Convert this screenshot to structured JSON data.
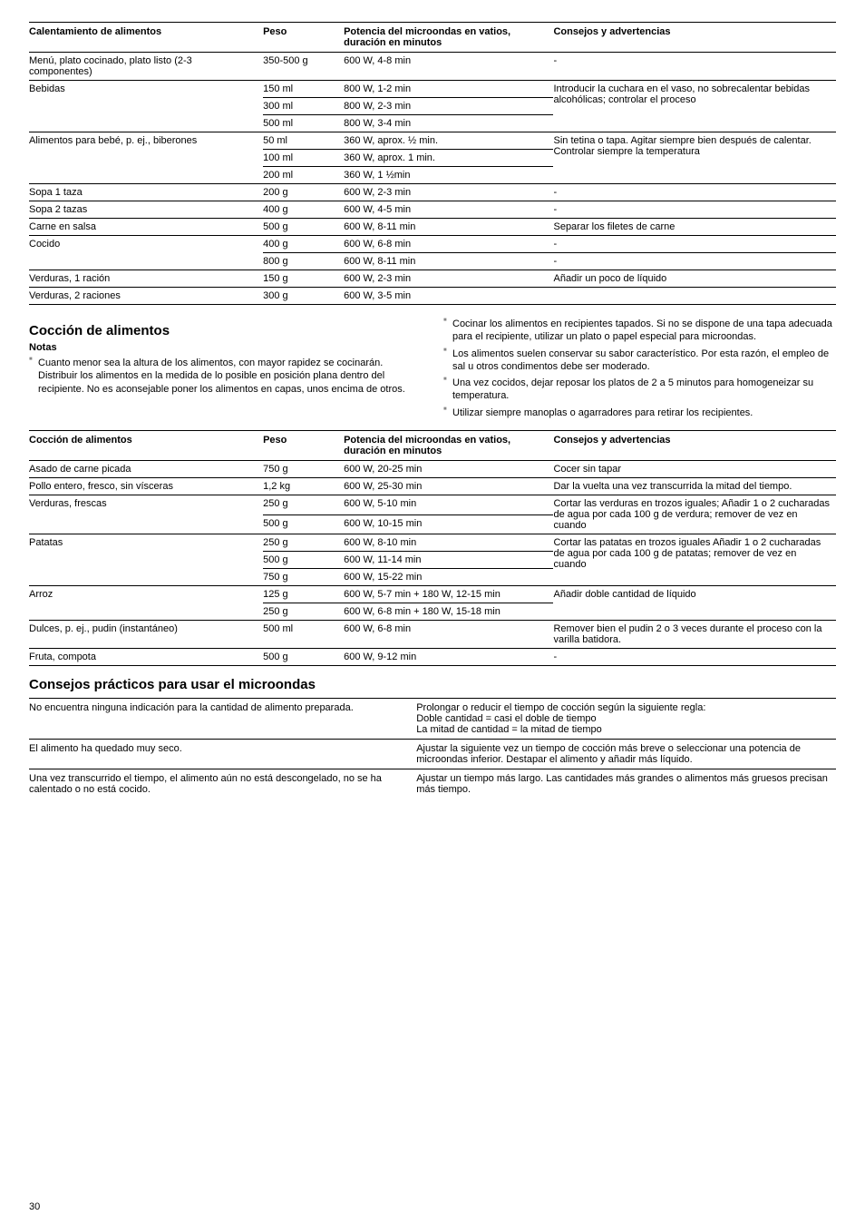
{
  "table1": {
    "headers": [
      "Calentamiento de alimentos",
      "Peso",
      "Potencia del microondas en vatios, duración en minutos",
      "Consejos y advertencias"
    ],
    "rows": [
      {
        "c1": "Menú, plato cocinado, plato listo (2-3 componentes)",
        "c2": "350-500 g",
        "c3": "600 W, 4-8 min",
        "c4": "-"
      },
      {
        "c1": "Bebidas",
        "c2": "150 ml",
        "c3": "800 W, 1-2 min",
        "c4": "Introducir la cuchara en el vaso, no sobrecalentar bebidas alcohólicas; controlar el proceso",
        "rowspan1": 3,
        "rowspan4": 3
      },
      {
        "c2": "300 ml",
        "c3": "800 W, 2-3 min"
      },
      {
        "c2": "500 ml",
        "c3": "800 W, 3-4 min"
      },
      {
        "c1": "Alimentos para bebé, p. ej., biberones",
        "c2": "50 ml",
        "c3": "360 W, aprox. ½ min.",
        "c4": "Sin tetina o tapa. Agitar siempre bien después de calentar. Controlar siempre la temperatura",
        "rowspan1": 3,
        "rowspan4": 3
      },
      {
        "c2": "100 ml",
        "c3": "360 W, aprox. 1 min."
      },
      {
        "c2": "200 ml",
        "c3": "360 W, 1 ½min"
      },
      {
        "c1": "Sopa 1 taza",
        "c2": "200 g",
        "c3": "600 W, 2-3 min",
        "c4": "-"
      },
      {
        "c1": "Sopa 2 tazas",
        "c2": "400 g",
        "c3": "600 W, 4-5 min",
        "c4": "-"
      },
      {
        "c1": "Carne en salsa",
        "c2": "500 g",
        "c3": "600 W, 8-11 min",
        "c4": "Separar los filetes de carne"
      },
      {
        "c1": "Cocido",
        "c2": "400 g",
        "c3": "600 W, 6-8 min",
        "c4": "-",
        "rowspan1": 2
      },
      {
        "c2": "800 g",
        "c3": "600 W, 8-11 min",
        "c4": "-"
      },
      {
        "c1": "Verduras, 1 ración",
        "c2": "150 g",
        "c3": "600 W, 2-3 min",
        "c4": "Añadir un poco de líquido"
      },
      {
        "c1": "Verduras, 2 raciones",
        "c2": "300 g",
        "c3": "600 W, 3-5 min",
        "c4": "",
        "last": true
      }
    ]
  },
  "section2": {
    "title": "Cocción de alimentos",
    "notasLabel": "Notas",
    "leftBullets": [
      "Cuanto menor sea la altura de los alimentos, con mayor rapidez se cocinarán. Distribuir los alimentos en la medida de lo posible en posición plana dentro del recipiente. No es aconsejable poner los alimentos en capas, unos encima de otros."
    ],
    "rightBullets": [
      "Cocinar los alimentos en recipientes tapados. Si no se dispone de una tapa adecuada para el recipiente, utilizar un plato o papel especial para microondas.",
      "Los alimentos suelen conservar su sabor característico. Por esta razón, el empleo de sal u otros condimentos debe ser moderado.",
      "Una vez cocidos, dejar reposar los platos de 2 a 5 minutos para homogeneizar su temperatura.",
      "Utilizar siempre manoplas o agarradores para retirar los recipientes."
    ]
  },
  "table2": {
    "headers": [
      "Cocción de alimentos",
      "Peso",
      "Potencia del microondas en vatios, duración en minutos",
      "Consejos y advertencias"
    ],
    "rows": [
      {
        "c1": "Asado de carne picada",
        "c2": "750 g",
        "c3": "600 W, 20-25 min",
        "c4": "Cocer sin tapar"
      },
      {
        "c1": "Pollo entero, fresco, sin vísceras",
        "c2": "1,2 kg",
        "c3": "600 W, 25-30 min",
        "c4": "Dar la vuelta una vez transcurrida la mitad del tiempo."
      },
      {
        "c1": "Verduras, frescas",
        "c2": "250 g",
        "c3": "600 W, 5-10 min",
        "c4": "Cortar las verduras en trozos iguales; Añadir 1 o 2 cucharadas de agua por cada 100 g de verdura; remover de vez en cuando",
        "rowspan1": 2,
        "rowspan4": 2
      },
      {
        "c2": "500 g",
        "c3": "600 W, 10-15 min"
      },
      {
        "c1": "Patatas",
        "c2": "250 g",
        "c3": "600 W, 8-10 min",
        "c4": "Cortar las patatas en trozos iguales Añadir 1 o 2 cucharadas de agua por cada 100 g de patatas; remover de vez en cuando",
        "rowspan1": 3,
        "rowspan4": 3
      },
      {
        "c2": "500 g",
        "c3": "600 W, 11-14 min"
      },
      {
        "c2": "750 g",
        "c3": "600 W, 15-22 min"
      },
      {
        "c1": "Arroz",
        "c2": "125 g",
        "c3": "600 W, 5-7 min + 180 W, 12-15 min",
        "c4": "Añadir doble cantidad de líquido",
        "rowspan1": 2,
        "rowspan4": 2
      },
      {
        "c2": "250 g",
        "c3": "600 W, 6-8 min + 180 W, 15-18 min"
      },
      {
        "c1": "Dulces, p. ej., pudin (instantáneo)",
        "c2": "500 ml",
        "c3": "600 W, 6-8 min",
        "c4": "Remover bien el pudin 2 o 3 veces durante el proceso con la varilla batidora."
      },
      {
        "c1": "Fruta, compota",
        "c2": "500 g",
        "c3": "600 W, 9-12 min",
        "c4": "-",
        "last": true
      }
    ]
  },
  "tips": {
    "title": "Consejos prácticos para usar el microondas",
    "rows": [
      {
        "l": "No encuentra ninguna indicación para la cantidad de alimento preparada.",
        "r": "Prolongar o reducir el tiempo de cocción según la siguiente regla:\nDoble cantidad = casi el doble de tiempo\nLa mitad de cantidad = la mitad de tiempo"
      },
      {
        "l": "El alimento ha quedado muy seco.",
        "r": "Ajustar la siguiente vez un tiempo de cocción más breve o seleccionar una potencia de microondas inferior. Destapar el alimento y añadir más líquido."
      },
      {
        "l": "Una vez transcurrido el tiempo, el alimento aún no está descongelado, no se ha calentado o no está cocido.",
        "r": "Ajustar un tiempo más largo. Las cantidades más grandes o alimentos más gruesos precisan más tiempo."
      }
    ]
  },
  "pageNum": "30"
}
